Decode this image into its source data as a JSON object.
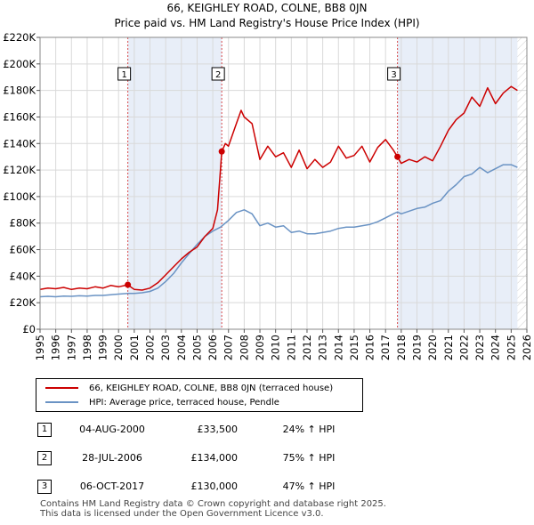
{
  "chart_data": {
    "type": "line",
    "title": "66, KEIGHLEY ROAD, COLNE, BB8 0JN",
    "subtitle": "Price paid vs. HM Land Registry's House Price Index (HPI)",
    "x_ticks": [
      "1995",
      "1996",
      "1997",
      "1998",
      "1999",
      "2000",
      "2001",
      "2002",
      "2003",
      "2004",
      "2005",
      "2006",
      "2007",
      "2008",
      "2009",
      "2010",
      "2011",
      "2012",
      "2013",
      "2014",
      "2015",
      "2016",
      "2017",
      "2018",
      "2019",
      "2020",
      "2021",
      "2022",
      "2023",
      "2024",
      "2025",
      "2026"
    ],
    "y_ticks": [
      "£0",
      "£20K",
      "£40K",
      "£60K",
      "£80K",
      "£100K",
      "£120K",
      "£140K",
      "£160K",
      "£180K",
      "£200K",
      "£220K"
    ],
    "xlim": [
      1995,
      2026
    ],
    "ylim": [
      0,
      220000
    ],
    "grid": true,
    "series": [
      {
        "name": "66, KEIGHLEY ROAD, COLNE, BB8 0JN (terraced house)",
        "color": "#cc0000",
        "x": [
          1995,
          1995.5,
          1996,
          1996.5,
          1997,
          1997.5,
          1998,
          1998.5,
          1999,
          1999.5,
          2000,
          2000.59,
          2001,
          2001.5,
          2002,
          2002.5,
          2003,
          2003.5,
          2004,
          2004.5,
          2005,
          2005.5,
          2006,
          2006.3,
          2006.57,
          2006.8,
          2007,
          2007.5,
          2007.8,
          2008,
          2008.5,
          2009,
          2009.5,
          2010,
          2010.5,
          2011,
          2011.5,
          2012,
          2012.5,
          2013,
          2013.5,
          2014,
          2014.5,
          2015,
          2015.5,
          2016,
          2016.5,
          2017,
          2017.5,
          2017.76,
          2018,
          2018.5,
          2019,
          2019.5,
          2020,
          2020.5,
          2021,
          2021.5,
          2022,
          2022.5,
          2023,
          2023.5,
          2024,
          2024.5,
          2025,
          2025.4
        ],
        "values": [
          30000,
          31000,
          30500,
          31500,
          30000,
          31000,
          30500,
          32000,
          31000,
          33000,
          32000,
          33500,
          30000,
          29500,
          31000,
          35000,
          41000,
          47000,
          53000,
          58000,
          62000,
          70000,
          76000,
          90000,
          134000,
          140000,
          138000,
          155000,
          165000,
          160000,
          155000,
          128000,
          138000,
          130000,
          133000,
          122000,
          135000,
          121000,
          128000,
          122000,
          126000,
          138000,
          129000,
          131000,
          138000,
          126000,
          137000,
          143000,
          135000,
          130000,
          125000,
          128000,
          126000,
          130000,
          127000,
          138000,
          150000,
          158000,
          163000,
          175000,
          168000,
          182000,
          170000,
          178000,
          183000,
          180000
        ]
      },
      {
        "name": "HPI: Average price, terraced house, Pendle",
        "color": "#6a93c4",
        "x": [
          1995,
          1995.5,
          1996,
          1996.5,
          1997,
          1997.5,
          1998,
          1998.5,
          1999,
          1999.5,
          2000,
          2000.59,
          2001,
          2001.5,
          2002,
          2002.5,
          2003,
          2003.5,
          2004,
          2004.5,
          2005,
          2005.5,
          2006,
          2006.5,
          2007,
          2007.5,
          2008,
          2008.5,
          2009,
          2009.5,
          2010,
          2010.5,
          2011,
          2011.5,
          2012,
          2012.5,
          2013,
          2013.5,
          2014,
          2014.5,
          2015,
          2015.5,
          2016,
          2016.5,
          2017,
          2017.5,
          2017.76,
          2018,
          2018.5,
          2019,
          2019.5,
          2020,
          2020.5,
          2021,
          2021.5,
          2022,
          2022.5,
          2023,
          2023.5,
          2024,
          2024.5,
          2025,
          2025.4
        ],
        "values": [
          24500,
          24800,
          24500,
          25000,
          24800,
          25200,
          25000,
          25500,
          25500,
          26000,
          26500,
          27000,
          27000,
          27500,
          28500,
          31000,
          36000,
          42000,
          50000,
          57000,
          64000,
          70000,
          74000,
          77000,
          82000,
          88000,
          90000,
          87000,
          78000,
          80000,
          77000,
          78000,
          73000,
          74000,
          72000,
          72000,
          73000,
          74000,
          76000,
          77000,
          77000,
          78000,
          79000,
          81000,
          84000,
          87000,
          88400,
          87000,
          89000,
          91000,
          92000,
          95000,
          97000,
          104000,
          109000,
          115000,
          117000,
          122000,
          118000,
          121000,
          124000,
          124000,
          122000
        ]
      }
    ],
    "markers": [
      {
        "label": "1",
        "x": 2000.59,
        "value": 33500
      },
      {
        "label": "2",
        "x": 2006.57,
        "value": 134000
      },
      {
        "label": "3",
        "x": 2017.76,
        "value": 130000
      }
    ],
    "shaded_ranges": [
      [
        2000.59,
        2006.57
      ],
      [
        2017.76,
        2025.4
      ]
    ],
    "hatched_from": 2025.4
  },
  "legend": {
    "items": [
      {
        "label": "66, KEIGHLEY ROAD, COLNE, BB8 0JN (terraced house)",
        "color": "#cc0000"
      },
      {
        "label": "HPI: Average price, terraced house, Pendle",
        "color": "#6a93c4"
      }
    ]
  },
  "sales": [
    {
      "num": "1",
      "date": "04-AUG-2000",
      "price": "£33,500",
      "hpi": "24% ↑ HPI"
    },
    {
      "num": "2",
      "date": "28-JUL-2006",
      "price": "£134,000",
      "hpi": "75% ↑ HPI"
    },
    {
      "num": "3",
      "date": "06-OCT-2017",
      "price": "£130,000",
      "hpi": "47% ↑ HPI"
    }
  ],
  "footer": {
    "line1": "Contains HM Land Registry data © Crown copyright and database right 2025.",
    "line2": "This data is licensed under the Open Government Licence v3.0."
  }
}
